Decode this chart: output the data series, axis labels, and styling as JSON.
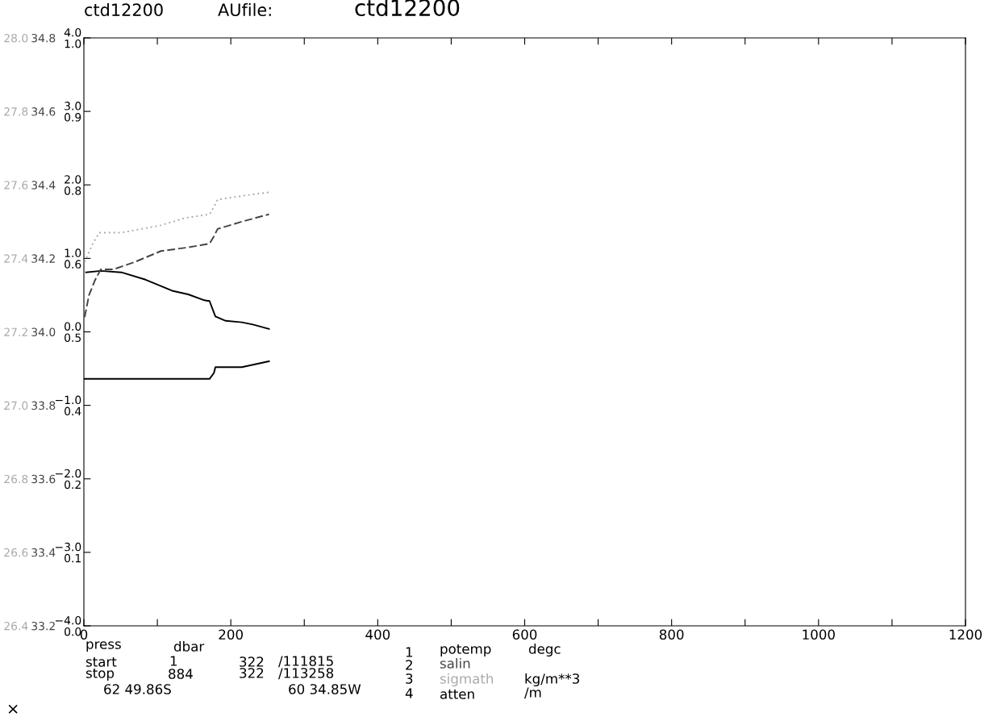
{
  "chart_data": [
    {
      "type": "line",
      "title": "ctd12200",
      "annotations": [
        "ctd12200",
        "AUfile:",
        "press",
        "dbar",
        "start",
        "1",
        "322",
        "/111815",
        "stop",
        "884",
        "322",
        "/113258",
        "62 49.86S",
        "60 34.85W",
        "1",
        "degc",
        "2",
        "3",
        "kg/m**3",
        "4",
        "/m",
        "×"
      ],
      "xlim": [
        0,
        1200
      ],
      "xticks": [
        0,
        {
          "value": 100,
          "label": null
        },
        200,
        {
          "value": 300,
          "label": null
        },
        400,
        {
          "value": 500,
          "label": null
        },
        600,
        {
          "value": 700,
          "label": null
        },
        800,
        {
          "value": 900,
          "label": null
        },
        1000,
        {
          "value": 1100,
          "label": null
        },
        1200
      ],
      "ylim": [
        -4.0,
        4.0
      ],
      "yticks": [
        {
          "value": -4,
          "label": "−4.0"
        },
        {
          "value": -3,
          "label": "−3.0"
        },
        {
          "value": -2,
          "label": "−2.0"
        },
        {
          "value": -1,
          "label": "−1.0"
        },
        {
          "value": 0,
          "label": "0.0"
        },
        {
          "value": 1,
          "label": "1.0"
        },
        {
          "value": 2,
          "label": "2.0"
        },
        {
          "value": 3,
          "label": "3.0"
        },
        {
          "value": 4,
          "label": "4.0"
        }
      ],
      "y2lim": [
        33.2,
        34.8
      ],
      "y2ticks": [
        {
          "value": 33.2,
          "label": "33.2"
        },
        {
          "value": 33.4,
          "label": "33.4"
        },
        {
          "value": 33.6,
          "label": "33.6"
        },
        {
          "value": 33.8,
          "label": "33.8"
        },
        {
          "value": 34.0,
          "label": "34.0"
        },
        {
          "value": 34.2,
          "label": "34.2"
        },
        {
          "value": 34.4,
          "label": "34.4"
        },
        {
          "value": 34.6,
          "label": "34.6"
        },
        {
          "value": 34.8,
          "label": "34.8"
        }
      ],
      "y3lim": [
        26.4,
        28.0
      ],
      "y3ticks": [
        {
          "value": 26.4,
          "label": "26.4"
        },
        {
          "value": 26.6,
          "label": "26.6"
        },
        {
          "value": 26.8,
          "label": "26.8"
        },
        {
          "value": 27.0,
          "label": "27.0"
        },
        {
          "value": 27.2,
          "label": "27.2"
        },
        {
          "value": 27.4,
          "label": "27.4"
        },
        {
          "value": 27.6,
          "label": "27.6"
        },
        {
          "value": 27.8,
          "label": "27.8"
        },
        {
          "value": 28.0,
          "label": "28.0"
        }
      ],
      "grid": false,
      "legend": false,
      "marker": "none",
      "series": [
        {
          "name": "potemp",
          "color": "#000000",
          "axis": "y",
          "line_style": "solid",
          "x": [
            3,
            23,
            51,
            84,
            120,
            142,
            164,
            171,
            179,
            193,
            215,
            230,
            252
          ],
          "values": [
            0.81,
            0.83,
            0.81,
            0.71,
            0.56,
            0.51,
            0.43,
            0.42,
            0.21,
            0.15,
            0.13,
            0.1,
            0.04
          ]
        },
        {
          "name": "salin",
          "color": "#444444",
          "axis": "y2",
          "line_style": "dashed",
          "x": [
            1,
            7,
            15,
            23,
            40,
            69,
            105,
            142,
            171,
            177,
            182,
            215,
            252
          ],
          "values": [
            34.04,
            34.1,
            34.14,
            34.17,
            34.17,
            34.19,
            34.22,
            34.23,
            34.24,
            34.26,
            34.28,
            34.3,
            34.32
          ]
        },
        {
          "name": "sigmath",
          "color": "#aaaaaa",
          "axis": "y3",
          "line_style": "dotted",
          "x": [
            1,
            12,
            21,
            51,
            105,
            138,
            171,
            177,
            182,
            215,
            252
          ],
          "values": [
            27.39,
            27.44,
            27.47,
            27.47,
            27.49,
            27.51,
            27.52,
            27.54,
            27.56,
            27.57,
            27.58
          ]
        }
      ]
    },
    {
      "type": "line",
      "tick_labels": "y",
      "xlim": [
        0,
        1200
      ],
      "ylim": [
        0.0,
        1.0
      ],
      "yticks": [
        {
          "value": 0.0,
          "label": "0.0"
        },
        {
          "value": 0.125,
          "label": "0.1"
        },
        {
          "value": 0.25,
          "label": "0.2"
        },
        {
          "value": 0.375,
          "label": "0.4"
        },
        {
          "value": 0.5,
          "label": "0.5"
        },
        {
          "value": 0.625,
          "label": "0.6"
        },
        {
          "value": 0.75,
          "label": "0.8"
        },
        {
          "value": 0.875,
          "label": "0.9"
        },
        {
          "value": 1.0,
          "label": "1.0"
        }
      ],
      "series": [
        {
          "name": "atten",
          "color": "#000000",
          "axis": "y",
          "line_style": "solid",
          "x": [
            1,
            87,
            171,
            177,
            179,
            215,
            252
          ],
          "values": [
            0.42,
            0.42,
            0.42,
            0.43,
            0.44,
            0.44,
            0.45
          ]
        }
      ]
    }
  ]
}
